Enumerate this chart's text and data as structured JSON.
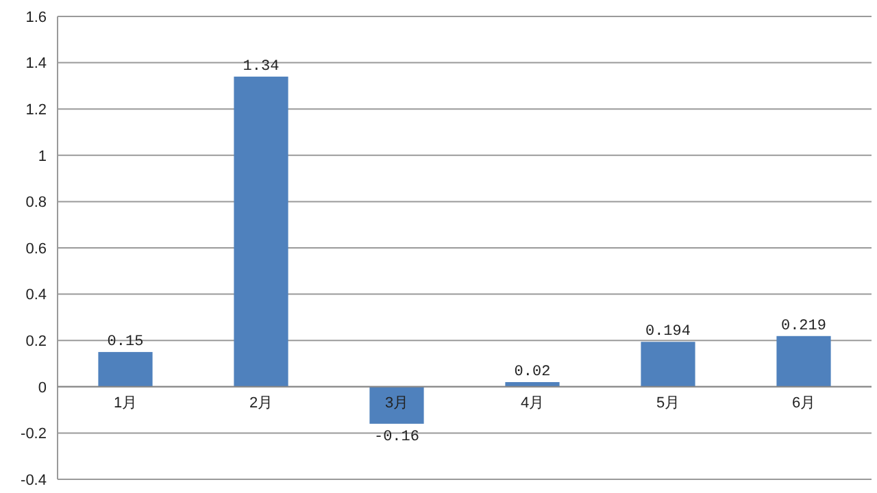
{
  "chart_data": {
    "type": "bar",
    "categories": [
      "1月",
      "2月",
      "3月",
      "4月",
      "5月",
      "6月"
    ],
    "values": [
      0.15,
      1.34,
      -0.16,
      0.02,
      0.194,
      0.219
    ],
    "color": "#4f81bd",
    "ylim": [
      -0.4,
      1.6
    ],
    "yticks": [
      -0.4,
      -0.2,
      0,
      0.2,
      0.4,
      0.6,
      0.8,
      1,
      1.2,
      1.4,
      1.6
    ],
    "grid": "y",
    "data_labels": true
  }
}
